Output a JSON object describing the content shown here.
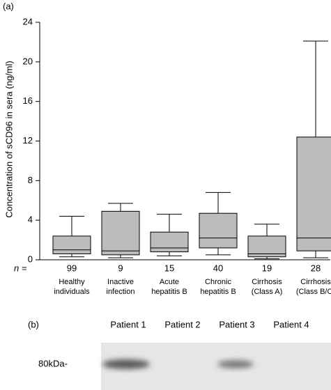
{
  "chart_data": {
    "type": "box",
    "panel_label": "(a)",
    "y_label": "Concentration of sCD96 in sera (ng/ml)",
    "n_label": "n =",
    "categories": [
      [
        "Healthy",
        "individuals"
      ],
      [
        "Inactive",
        "infection"
      ],
      [
        "Acute",
        "hepatitis B"
      ],
      [
        "Chronic",
        "hepatitis B"
      ],
      [
        "Cirrhosis",
        "(Class A)"
      ],
      [
        "Cirrhosis",
        "(Class B/C)"
      ]
    ],
    "n": [
      99,
      9,
      15,
      40,
      19,
      28
    ],
    "boxes": [
      {
        "low": 0.3,
        "q1": 0.6,
        "median": 1.0,
        "q3": 2.4,
        "high": 4.4
      },
      {
        "low": 0.2,
        "q1": 0.5,
        "median": 0.9,
        "q3": 4.9,
        "high": 5.7
      },
      {
        "low": 0.4,
        "q1": 0.8,
        "median": 1.2,
        "q3": 2.8,
        "high": 4.6
      },
      {
        "low": 0.5,
        "q1": 1.2,
        "median": 2.2,
        "q3": 4.7,
        "high": 6.8
      },
      {
        "low": 0.1,
        "q1": 0.3,
        "median": 0.6,
        "q3": 2.4,
        "high": 3.6
      },
      {
        "low": 0.2,
        "q1": 0.9,
        "median": 2.2,
        "q3": 12.4,
        "high": 22.1
      }
    ],
    "color": "#bcbcbc",
    "ylim": [
      0,
      24
    ],
    "yticks": [
      0,
      4,
      8,
      12,
      16,
      20,
      24
    ]
  },
  "blot": {
    "panel_label": "(b)",
    "lanes": [
      "Patient 1",
      "Patient 2",
      "Patient 3",
      "Patient 4"
    ],
    "marker": "80kDa-"
  }
}
